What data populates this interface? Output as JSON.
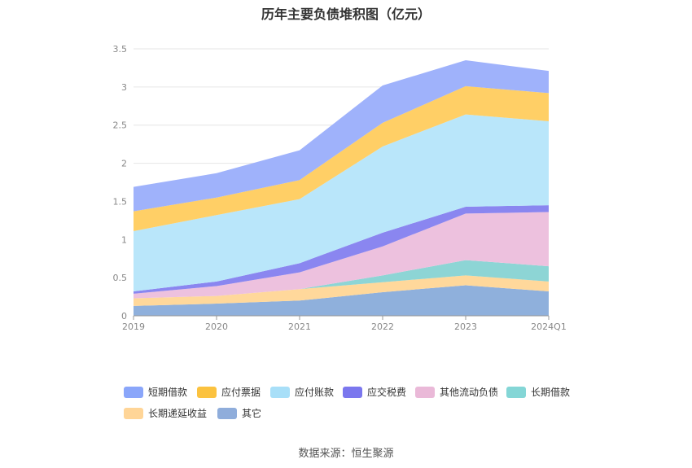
{
  "chart_data": {
    "type": "area",
    "stacked": true,
    "title": "历年主要负债堆积图（亿元）",
    "categories": [
      "2019",
      "2020",
      "2021",
      "2022",
      "2023",
      "2024Q1"
    ],
    "ylim": [
      0,
      3.5
    ],
    "yticks": [
      "0",
      "0.5",
      "1",
      "1.5",
      "2",
      "2.5",
      "3",
      "3.5"
    ],
    "grid": true,
    "legend_position": "bottom",
    "series": [
      {
        "name": "其它",
        "color": "#8fb0dc",
        "values": [
          0.13,
          0.16,
          0.2,
          0.31,
          0.4,
          0.32
        ]
      },
      {
        "name": "长期递延收益",
        "color": "#ffd89b",
        "values": [
          0.1,
          0.1,
          0.15,
          0.13,
          0.13,
          0.13
        ]
      },
      {
        "name": "长期借款",
        "color": "#8dd5d5",
        "values": [
          0.0,
          0.0,
          0.0,
          0.09,
          0.2,
          0.2
        ]
      },
      {
        "name": "其他流动负债",
        "color": "#edc1de",
        "values": [
          0.06,
          0.13,
          0.22,
          0.38,
          0.61,
          0.71
        ]
      },
      {
        "name": "应交税费",
        "color": "#8a86f0",
        "values": [
          0.03,
          0.06,
          0.12,
          0.18,
          0.09,
          0.09
        ]
      },
      {
        "name": "应付账款",
        "color": "#b9e6fa",
        "values": [
          0.79,
          0.87,
          0.84,
          1.13,
          1.21,
          1.1
        ]
      },
      {
        "name": "应付票据",
        "color": "#ffcf66",
        "values": [
          0.26,
          0.23,
          0.25,
          0.31,
          0.37,
          0.37
        ]
      },
      {
        "name": "短期借款",
        "color": "#9fb2fb",
        "values": [
          0.32,
          0.32,
          0.39,
          0.49,
          0.34,
          0.29
        ]
      }
    ]
  },
  "legend": [
    {
      "label": "短期借款",
      "color": "#8aa6fa"
    },
    {
      "label": "应付票据",
      "color": "#fbc23f"
    },
    {
      "label": "应付账款",
      "color": "#a8dff8"
    },
    {
      "label": "应交税费",
      "color": "#7b77ee"
    },
    {
      "label": "其他流动负债",
      "color": "#eab9d8"
    },
    {
      "label": "长期借款",
      "color": "#84d6d6"
    },
    {
      "label": "长期递延收益",
      "color": "#ffd597"
    },
    {
      "label": "其它",
      "color": "#8faddb"
    }
  ],
  "footer": {
    "source": "数据来源：恒生聚源"
  }
}
